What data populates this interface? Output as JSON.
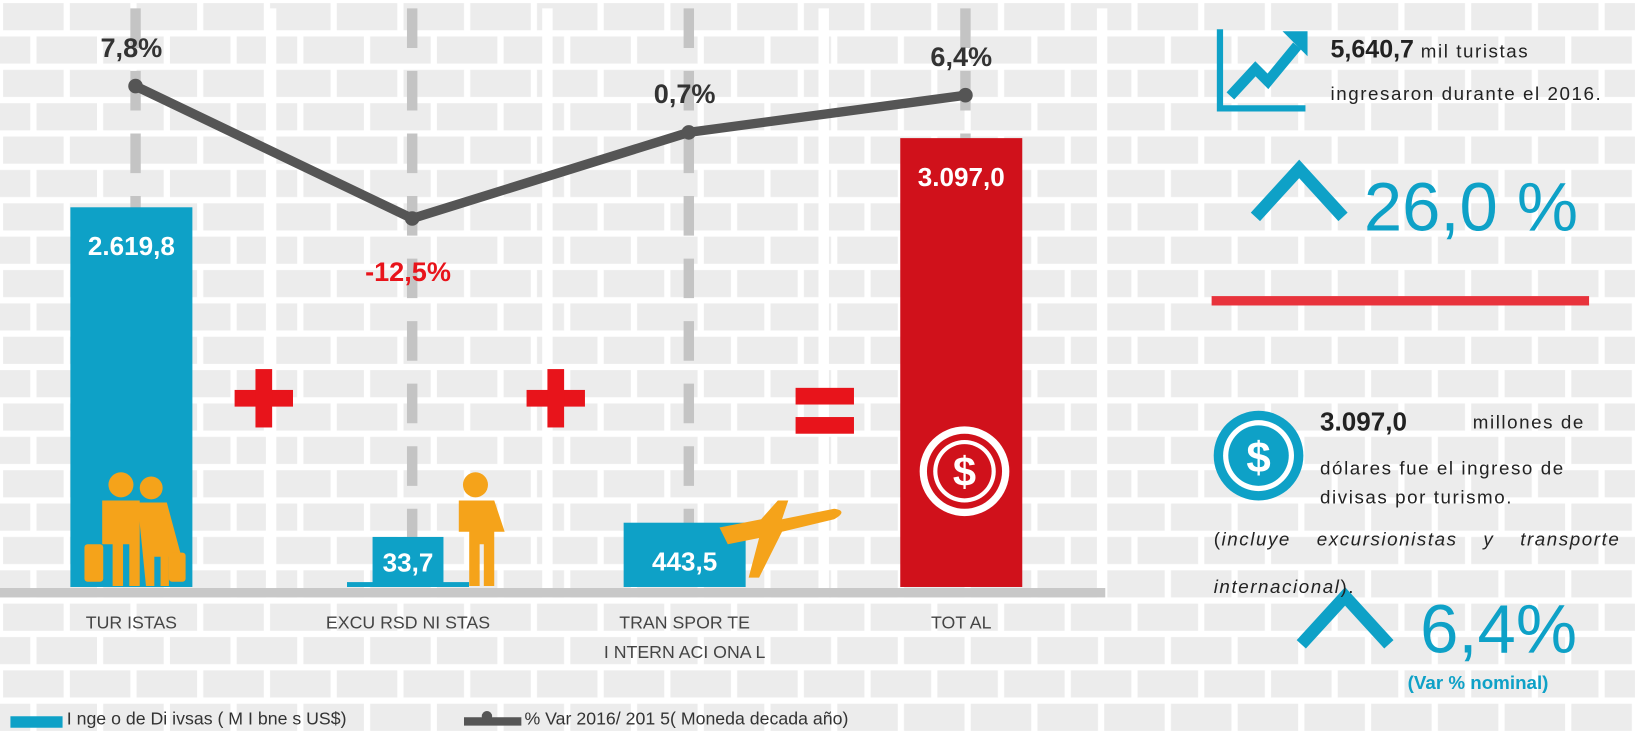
{
  "chart_data": {
    "type": "bar",
    "categories": [
      "TUR ISTAS",
      "EXCU RSD NI STAS",
      "TRAN SPOR TE\nI NTERN ACI ONA L",
      "TOT AL"
    ],
    "ylim": [
      0,
      4050
    ],
    "y2lim": [
      -69,
      21
    ],
    "grid": true,
    "legend": "bottom-left",
    "series": [
      {
        "name": "I nge o de Di ivsas ( M I bne s US$)",
        "type": "bar",
        "color": "#0ea1c7",
        "colors": [
          "#0ea1c7",
          "#0ea1c7",
          "#0ea1c7",
          "#d0111b"
        ],
        "values": [
          2619.8,
          33.7,
          443.5,
          3097.0
        ],
        "value_labels": [
          "2.619,8",
          "33,7",
          "443,5",
          "3.097,0"
        ]
      },
      {
        "name": "% Var 2016/ 201 5( Moneda decada año)",
        "type": "line",
        "axis": "y2",
        "color": "#555555",
        "negative_color": "#e8141b",
        "values": [
          7.8,
          -12.5,
          0.7,
          6.4
        ],
        "value_labels": [
          "7,8%",
          "-12,5%",
          "0,7%",
          "6,4%"
        ]
      }
    ]
  },
  "highlights": {
    "tourists_value": "5,640,7",
    "tourists_text": "mil turistas",
    "tourists_text2": "ingresaron durante el 2016.",
    "tourists_change": "26,0 %",
    "income_value": "3.097,0",
    "income_lines": [
      "millones de",
      "dólares fue el ingreso de",
      "divisas por turismo."
    ],
    "note": [
      "(",
      "incluye excursionistas y transporte internacional",
      ")."
    ],
    "income_change": "6,4%",
    "income_change_note": "(Var % nominal)"
  }
}
